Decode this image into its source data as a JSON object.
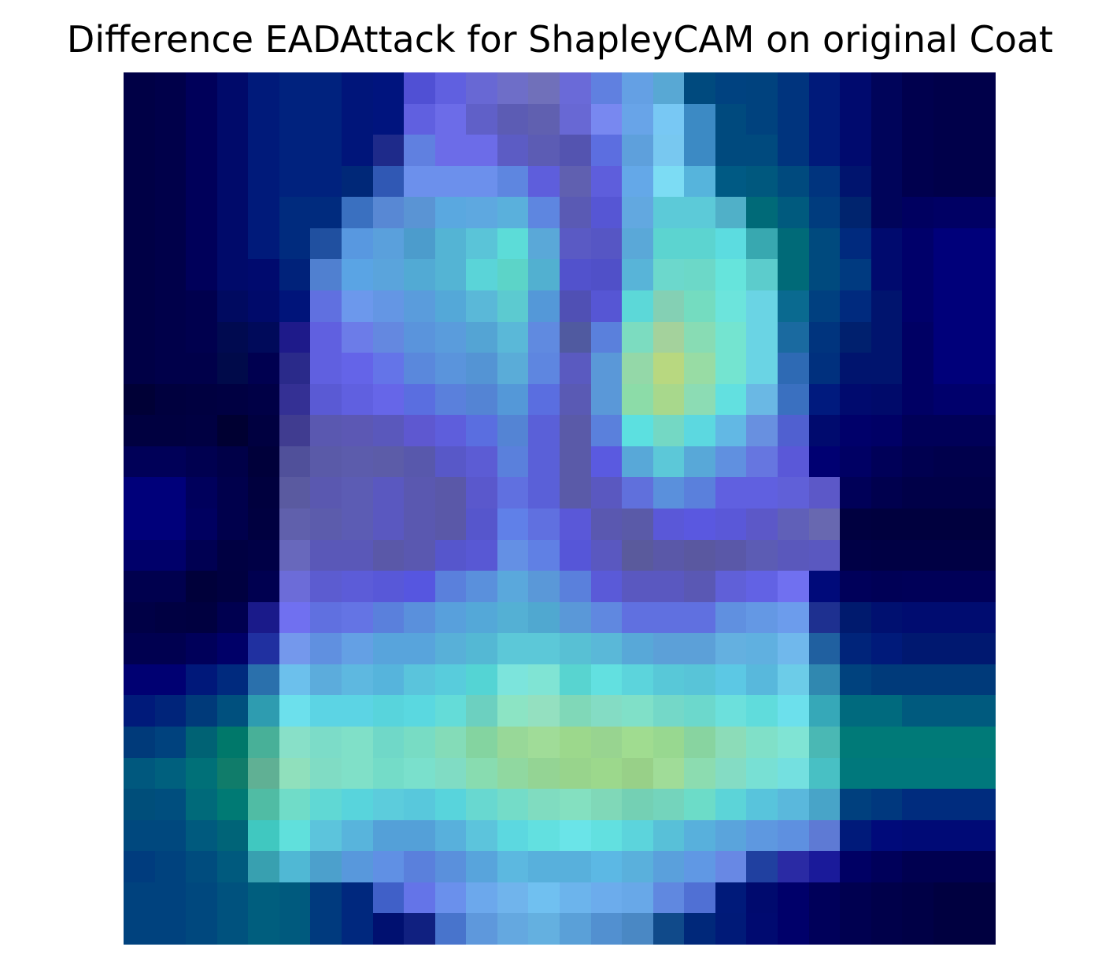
{
  "figure": {
    "title": "Difference EADAttack for ShapleyCAM on original Coat"
  },
  "image": {
    "grid_size": 28,
    "description": "blue-to-teal-to-green heatmap overlay of a coat silhouette",
    "rows": [
      [
        "#000046",
        "#00004a",
        "#00005a",
        "#000a6a",
        "#001a7a",
        "#00227e",
        "#00227e",
        "#00157a",
        "#00147e",
        "#5050d4",
        "#6060e0",
        "#6868d4",
        "#6e6ec8",
        "#7070ba",
        "#6a6ad8",
        "#6080e0",
        "#64a0e4",
        "#58a8d4",
        "#004a7e",
        "#004280",
        "#00427e",
        "#00347e",
        "#001a7a",
        "#000a6e",
        "#00045a",
        "#00004e",
        "#00004a",
        "#00004a"
      ],
      [
        "#000046",
        "#00004a",
        "#00005a",
        "#000a6a",
        "#001a7a",
        "#00227e",
        "#00227e",
        "#00157a",
        "#00147e",
        "#6060e0",
        "#6c6ce8",
        "#6060c8",
        "#5c5cb4",
        "#6060b0",
        "#6868d4",
        "#7888f0",
        "#68a4e8",
        "#78c8f4",
        "#3c8ac4",
        "#004a7e",
        "#00427e",
        "#00347e",
        "#001a7a",
        "#000a6e",
        "#00045a",
        "#00004e",
        "#00004a",
        "#00004a"
      ],
      [
        "#000046",
        "#00004a",
        "#00005a",
        "#000a6a",
        "#001a7a",
        "#00227e",
        "#00227e",
        "#00157a",
        "#1e2a8a",
        "#6080e0",
        "#6c6ce8",
        "#6c6ce8",
        "#5c5cc4",
        "#5c5cb4",
        "#5454b0",
        "#5c6ee0",
        "#5ea0dc",
        "#78c8f0",
        "#3c8ac4",
        "#004a7e",
        "#004a7e",
        "#00347e",
        "#001a7a",
        "#000a6e",
        "#00045a",
        "#00004e",
        "#00004a",
        "#00004a"
      ],
      [
        "#000046",
        "#00004a",
        "#00005a",
        "#000a6a",
        "#001a7a",
        "#00227e",
        "#00227e",
        "#002878",
        "#3058b4",
        "#6c90ec",
        "#6c90ec",
        "#6c90ec",
        "#5e86e0",
        "#5e5edc",
        "#6060b0",
        "#5e5edc",
        "#64a8e8",
        "#7cdcf4",
        "#56b4dc",
        "#005a84",
        "#00587e",
        "#004a7e",
        "#00347e",
        "#00146e",
        "#00045a",
        "#00004e",
        "#00004a",
        "#00004a"
      ],
      [
        "#000046",
        "#00004a",
        "#00005a",
        "#000a6a",
        "#001a7a",
        "#002b7e",
        "#002b7e",
        "#3a70c0",
        "#5888d4",
        "#5a94d4",
        "#5aa8e0",
        "#5ea8e0",
        "#5ab0dc",
        "#5e86e0",
        "#5a5ab4",
        "#5656d4",
        "#62a8e0",
        "#5ccad8",
        "#5ccad8",
        "#50b0c8",
        "#006a78",
        "#005a7e",
        "#003c7e",
        "#00246e",
        "#00045a",
        "#000060",
        "#000064",
        "#000064"
      ],
      [
        "#000046",
        "#00004a",
        "#00005a",
        "#000a6a",
        "#001a7a",
        "#002b7e",
        "#2050a0",
        "#5898e0",
        "#5aa0dc",
        "#4c9ccc",
        "#54b4d4",
        "#5ac4d8",
        "#5cdcd8",
        "#5aa8d8",
        "#5a5ac4",
        "#5656c4",
        "#5aa8d8",
        "#5cd4d0",
        "#5cd4d0",
        "#5cdce0",
        "#38a8b0",
        "#006a78",
        "#004a7e",
        "#002a7e",
        "#000a6e",
        "#00006a",
        "#00007a",
        "#00007a"
      ],
      [
        "#000046",
        "#00004a",
        "#00005a",
        "#000a6a",
        "#000a6e",
        "#00227a",
        "#5080d0",
        "#5aa4e4",
        "#5aa4dc",
        "#52aad4",
        "#54b4d4",
        "#5ad4d8",
        "#5cd4c8",
        "#52b0d0",
        "#5252cc",
        "#5050c8",
        "#58b4d8",
        "#6cd8cc",
        "#6cd8c8",
        "#66e4dc",
        "#5ccccc",
        "#006a78",
        "#004a7e",
        "#003a80",
        "#000a6e",
        "#00006a",
        "#00007a",
        "#00007a"
      ],
      [
        "#000046",
        "#00004a",
        "#00004e",
        "#000a60",
        "#000a6a",
        "#00147a",
        "#6070e0",
        "#6c98ec",
        "#6496e4",
        "#5a9cdc",
        "#54a8d8",
        "#5ab8d8",
        "#5ccad0",
        "#5498d8",
        "#5050b4",
        "#5656d4",
        "#5cd8d8",
        "#84d0b4",
        "#74dcc0",
        "#6ce4dc",
        "#6ad4e4",
        "#0a6a90",
        "#004080",
        "#002a7e",
        "#00146e",
        "#00006a",
        "#00007a",
        "#00007a"
      ],
      [
        "#000046",
        "#00004a",
        "#00004e",
        "#000a50",
        "#000a5a",
        "#1e1a8a",
        "#6060e0",
        "#6c7ce8",
        "#6488e0",
        "#5a94dc",
        "#5a9cdc",
        "#54a4d4",
        "#5ab8d8",
        "#608ae0",
        "#505aa0",
        "#5a80dc",
        "#7cdcc0",
        "#a4d29c",
        "#88dcb4",
        "#74e4d0",
        "#6ad4e4",
        "#1a6aa0",
        "#00347e",
        "#00206e",
        "#00146e",
        "#000064",
        "#00007a",
        "#00007a"
      ],
      [
        "#000046",
        "#00004a",
        "#00004a",
        "#000a4a",
        "#000050",
        "#2a2a8a",
        "#6060e0",
        "#6464e8",
        "#6474e8",
        "#5a88dc",
        "#5a94dc",
        "#5494d4",
        "#5aacd8",
        "#5e86e0",
        "#5a5ac0",
        "#5a98d8",
        "#94d8a8",
        "#b8d880",
        "#98dca4",
        "#74e4d0",
        "#6ad4e4",
        "#2e6ab4",
        "#00307e",
        "#00146e",
        "#00146e",
        "#000064",
        "#00007a",
        "#00007a"
      ],
      [
        "#000036",
        "#00003e",
        "#000040",
        "#000042",
        "#000046",
        "#343094",
        "#5a5ad4",
        "#6060e0",
        "#6666e8",
        "#5a6ee0",
        "#5a80dc",
        "#5484d4",
        "#5498d8",
        "#5a6ee0",
        "#5a5ab4",
        "#5a98d8",
        "#8cdca8",
        "#a8d88c",
        "#8cdcb4",
        "#62e0e0",
        "#6ab8e4",
        "#3a70c0",
        "#001a7e",
        "#000a6e",
        "#000a6a",
        "#000064",
        "#00006c",
        "#00006c"
      ],
      [
        "#000040",
        "#000040",
        "#000042",
        "#000032",
        "#000040",
        "#403c90",
        "#5a58b0",
        "#5c58b4",
        "#5a58bc",
        "#5e58d0",
        "#5e5edc",
        "#5a6ee0",
        "#5484d4",
        "#5a60d8",
        "#5a5aa8",
        "#5a80dc",
        "#5ce0e0",
        "#74d8c4",
        "#5cd8e0",
        "#62b8e4",
        "#6890e0",
        "#5060d0",
        "#000a6e",
        "#00006a",
        "#000066",
        "#000058",
        "#000058",
        "#000058"
      ],
      [
        "#000058",
        "#000058",
        "#000050",
        "#000048",
        "#00003a",
        "#50509a",
        "#5a5aa8",
        "#5c5cac",
        "#5c5ca8",
        "#5858ac",
        "#5858c8",
        "#5c5cd4",
        "#5a80dc",
        "#5a60d8",
        "#5a5aa8",
        "#5a5ae0",
        "#58a8d8",
        "#5cc8d8",
        "#58a8d8",
        "#6090e0",
        "#6676e0",
        "#5a58d8",
        "#000072",
        "#000064",
        "#000058",
        "#000050",
        "#00004c",
        "#00004c"
      ],
      [
        "#00007a",
        "#00007a",
        "#00005c",
        "#00004c",
        "#00003e",
        "#5a5aa0",
        "#5a58b0",
        "#5c5cb4",
        "#5a58c0",
        "#5a58b0",
        "#5a58a8",
        "#5a58cc",
        "#6070e0",
        "#5a60d8",
        "#5a5aa8",
        "#5a58c0",
        "#6070dc",
        "#5a90dc",
        "#5a80dc",
        "#6060e0",
        "#6060e0",
        "#6060d8",
        "#5c58c8",
        "#000058",
        "#00004e",
        "#000048",
        "#000048",
        "#000048"
      ],
      [
        "#00007a",
        "#00007a",
        "#000060",
        "#00004c",
        "#000040",
        "#6060ac",
        "#5c5cac",
        "#5c5cb4",
        "#5a58c0",
        "#5a58b0",
        "#5a58a8",
        "#5656cc",
        "#6080e8",
        "#6070e0",
        "#5a58d8",
        "#5a58b0",
        "#5a5aa8",
        "#5a58d8",
        "#5a58e0",
        "#5a58d8",
        "#5c58c8",
        "#6060b8",
        "#6868b0",
        "#000040",
        "#00003e",
        "#00003e",
        "#00003e",
        "#00003e"
      ],
      [
        "#00006a",
        "#00006a",
        "#000052",
        "#000042",
        "#000046",
        "#6868bc",
        "#5a58b8",
        "#5a58b8",
        "#5a58a8",
        "#5a58b0",
        "#5656cc",
        "#5858d4",
        "#6490e4",
        "#6080e4",
        "#5656d8",
        "#5a58c0",
        "#5a5a9c",
        "#5a58a8",
        "#5a58a0",
        "#5a58a8",
        "#5c5cb4",
        "#5a58bc",
        "#5a58c0",
        "#000046",
        "#000044",
        "#000044",
        "#000044",
        "#000044"
      ],
      [
        "#00004e",
        "#00004e",
        "#00003a",
        "#000040",
        "#000050",
        "#6c6cd8",
        "#5c5cd0",
        "#5c5cd8",
        "#5858d8",
        "#5656e0",
        "#5a80dc",
        "#5a90dc",
        "#5aa8dc",
        "#5a98d8",
        "#5a80dc",
        "#5a5ad8",
        "#5a58c0",
        "#5a58c0",
        "#5a58b4",
        "#6060d8",
        "#6262e4",
        "#7070f0",
        "#000a7a",
        "#00005a",
        "#000056",
        "#000058",
        "#000058",
        "#000058"
      ],
      [
        "#000046",
        "#000042",
        "#000040",
        "#000050",
        "#1a1a8a",
        "#7070f0",
        "#6070e0",
        "#6474e4",
        "#5a80dc",
        "#5a90dc",
        "#58a0dc",
        "#54a8d8",
        "#54b0d4",
        "#50a8d0",
        "#5a98d8",
        "#6088e0",
        "#6070e0",
        "#6070e0",
        "#6070e0",
        "#6090e0",
        "#6498e4",
        "#6c9cec",
        "#1e3090",
        "#001a6e",
        "#001070",
        "#000c70",
        "#000c70",
        "#000c70"
      ],
      [
        "#000050",
        "#000050",
        "#00005a",
        "#000068",
        "#2030a0",
        "#7498ec",
        "#6090e0",
        "#64a0e4",
        "#58a4dc",
        "#58a4dc",
        "#58b0d8",
        "#54b8d4",
        "#5cc8d8",
        "#5cc8d8",
        "#58c0d4",
        "#5ab8d8",
        "#58a8d8",
        "#5ca0d8",
        "#5ca0d8",
        "#64b0e0",
        "#60b0e0",
        "#70b8ec",
        "#2060a0",
        "#00247a",
        "#001a7a",
        "#001870",
        "#001870",
        "#001870"
      ],
      [
        "#000072",
        "#000072",
        "#00187a",
        "#002a7e",
        "#2a70ac",
        "#6cc0ec",
        "#5cacdc",
        "#5eb8e0",
        "#56b4dc",
        "#5ac4dc",
        "#58ccdc",
        "#54d4d4",
        "#7ce4dc",
        "#80e4d4",
        "#58d4d0",
        "#62e0e0",
        "#5cd4dc",
        "#58c8d8",
        "#58c4d8",
        "#5cc8e4",
        "#58b8dc",
        "#6ccce8",
        "#3088b0",
        "#00427e",
        "#003a7a",
        "#003a7a",
        "#003a7a",
        "#003a7a"
      ],
      [
        "#001a7a",
        "#00247a",
        "#003a7a",
        "#00507e",
        "#2e9cb0",
        "#6ce0ec",
        "#5cd4e4",
        "#5cd4e4",
        "#58d4dc",
        "#5ad8e0",
        "#64dcd8",
        "#6cd0c0",
        "#8ce4c4",
        "#94e0c0",
        "#80d8b8",
        "#84dcc4",
        "#80e0c8",
        "#74d8c8",
        "#6cd8cc",
        "#6ce0dc",
        "#60dcdc",
        "#6ce0ec",
        "#36a8b8",
        "#006a7e",
        "#006a7e",
        "#005a7e",
        "#005a7e",
        "#005a7e"
      ],
      [
        "#003a7a",
        "#00427e",
        "#006274",
        "#00786a",
        "#48b098",
        "#88e0c8",
        "#7cdcc8",
        "#80e0c8",
        "#70d8c8",
        "#78dcc4",
        "#84dcb8",
        "#84d4a0",
        "#98d898",
        "#a0dc98",
        "#9cd88c",
        "#98d490",
        "#a0dc90",
        "#98d890",
        "#88d4a0",
        "#8cdcb8",
        "#80e0c8",
        "#80e4d4",
        "#4ab8b4",
        "#007a78",
        "#007a78",
        "#007a78",
        "#007a78",
        "#007a78"
      ],
      [
        "#00587e",
        "#00607e",
        "#007078",
        "#107c6a",
        "#60b094",
        "#90e0bc",
        "#80dcc4",
        "#80e0c8",
        "#74dcc8",
        "#7ae0cc",
        "#80dcc4",
        "#88dcb0",
        "#90d8a0",
        "#94d494",
        "#98d48c",
        "#9cd88c",
        "#98d088",
        "#a0dc98",
        "#8cdcb0",
        "#84dcc4",
        "#78e0d4",
        "#74e0e0",
        "#48c0c4",
        "#00787c",
        "#00787c",
        "#00787c",
        "#00787c",
        "#00787c"
      ],
      [
        "#004e7a",
        "#004e7e",
        "#006a7a",
        "#007a74",
        "#50bca4",
        "#70dcc8",
        "#60d8d4",
        "#58d4dc",
        "#5cccdc",
        "#58c8dc",
        "#58d4dc",
        "#68d8d0",
        "#74dcc8",
        "#80dcc0",
        "#84e0c0",
        "#80d8b8",
        "#74d0b4",
        "#74d4bc",
        "#6cdcc8",
        "#5cd4d8",
        "#58c4dc",
        "#5ab8dc",
        "#48a4c8",
        "#00407e",
        "#00387e",
        "#002c7e",
        "#002c7e",
        "#002c7e"
      ],
      [
        "#00487e",
        "#00487e",
        "#005a7e",
        "#006478",
        "#40c8c0",
        "#60e0dc",
        "#5cc4dc",
        "#58b4dc",
        "#54a0d8",
        "#54a0d8",
        "#58b0dc",
        "#5cc4dc",
        "#5cd8e0",
        "#62e0e0",
        "#6ae4e8",
        "#62e0e0",
        "#5cd4dc",
        "#58c0d8",
        "#58b0dc",
        "#5aa4dc",
        "#5e98e0",
        "#5e90e0",
        "#5e7ad4",
        "#001a7a",
        "#000a7a",
        "#000a76",
        "#000a76",
        "#000a76"
      ],
      [
        "#003c7e",
        "#00427e",
        "#004c7e",
        "#005a7e",
        "#38a0b0",
        "#50b8d4",
        "#4ca0cc",
        "#5898dc",
        "#6090e4",
        "#5a80dc",
        "#5a90dc",
        "#58a4dc",
        "#5cb8e0",
        "#58b0dc",
        "#58b0dc",
        "#5cb8e4",
        "#5ab0dc",
        "#5aa0dc",
        "#6098e4",
        "#6888e4",
        "#2040a0",
        "#2a2aa4",
        "#1a1a9a",
        "#000064",
        "#00005a",
        "#000050",
        "#000050",
        "#000050"
      ],
      [
        "#00427e",
        "#00427e",
        "#00487e",
        "#00527e",
        "#005e7e",
        "#005a7e",
        "#003a7e",
        "#00287e",
        "#4060c8",
        "#6474e8",
        "#6a90ec",
        "#6ca8ec",
        "#70b4ec",
        "#70c0f0",
        "#6cb4ec",
        "#6cacec",
        "#68a8e8",
        "#6088e0",
        "#5070d4",
        "#001a7a",
        "#000a6e",
        "#00006a",
        "#00005a",
        "#000050",
        "#00004a",
        "#000046",
        "#000040",
        "#000040"
      ],
      [
        "#00427e",
        "#00427e",
        "#00487e",
        "#00527e",
        "#005e7e",
        "#005a7e",
        "#003a7e",
        "#00287e",
        "#001070",
        "#102080",
        "#4874cc",
        "#5e98dc",
        "#64a8e0",
        "#64b0e0",
        "#5aa0d8",
        "#5290d0",
        "#4a88c4",
        "#104a8a",
        "#00287a",
        "#001a78",
        "#000a70",
        "#00006a",
        "#00005a",
        "#000050",
        "#00004a",
        "#000046",
        "#000040",
        "#000040"
      ]
    ]
  }
}
